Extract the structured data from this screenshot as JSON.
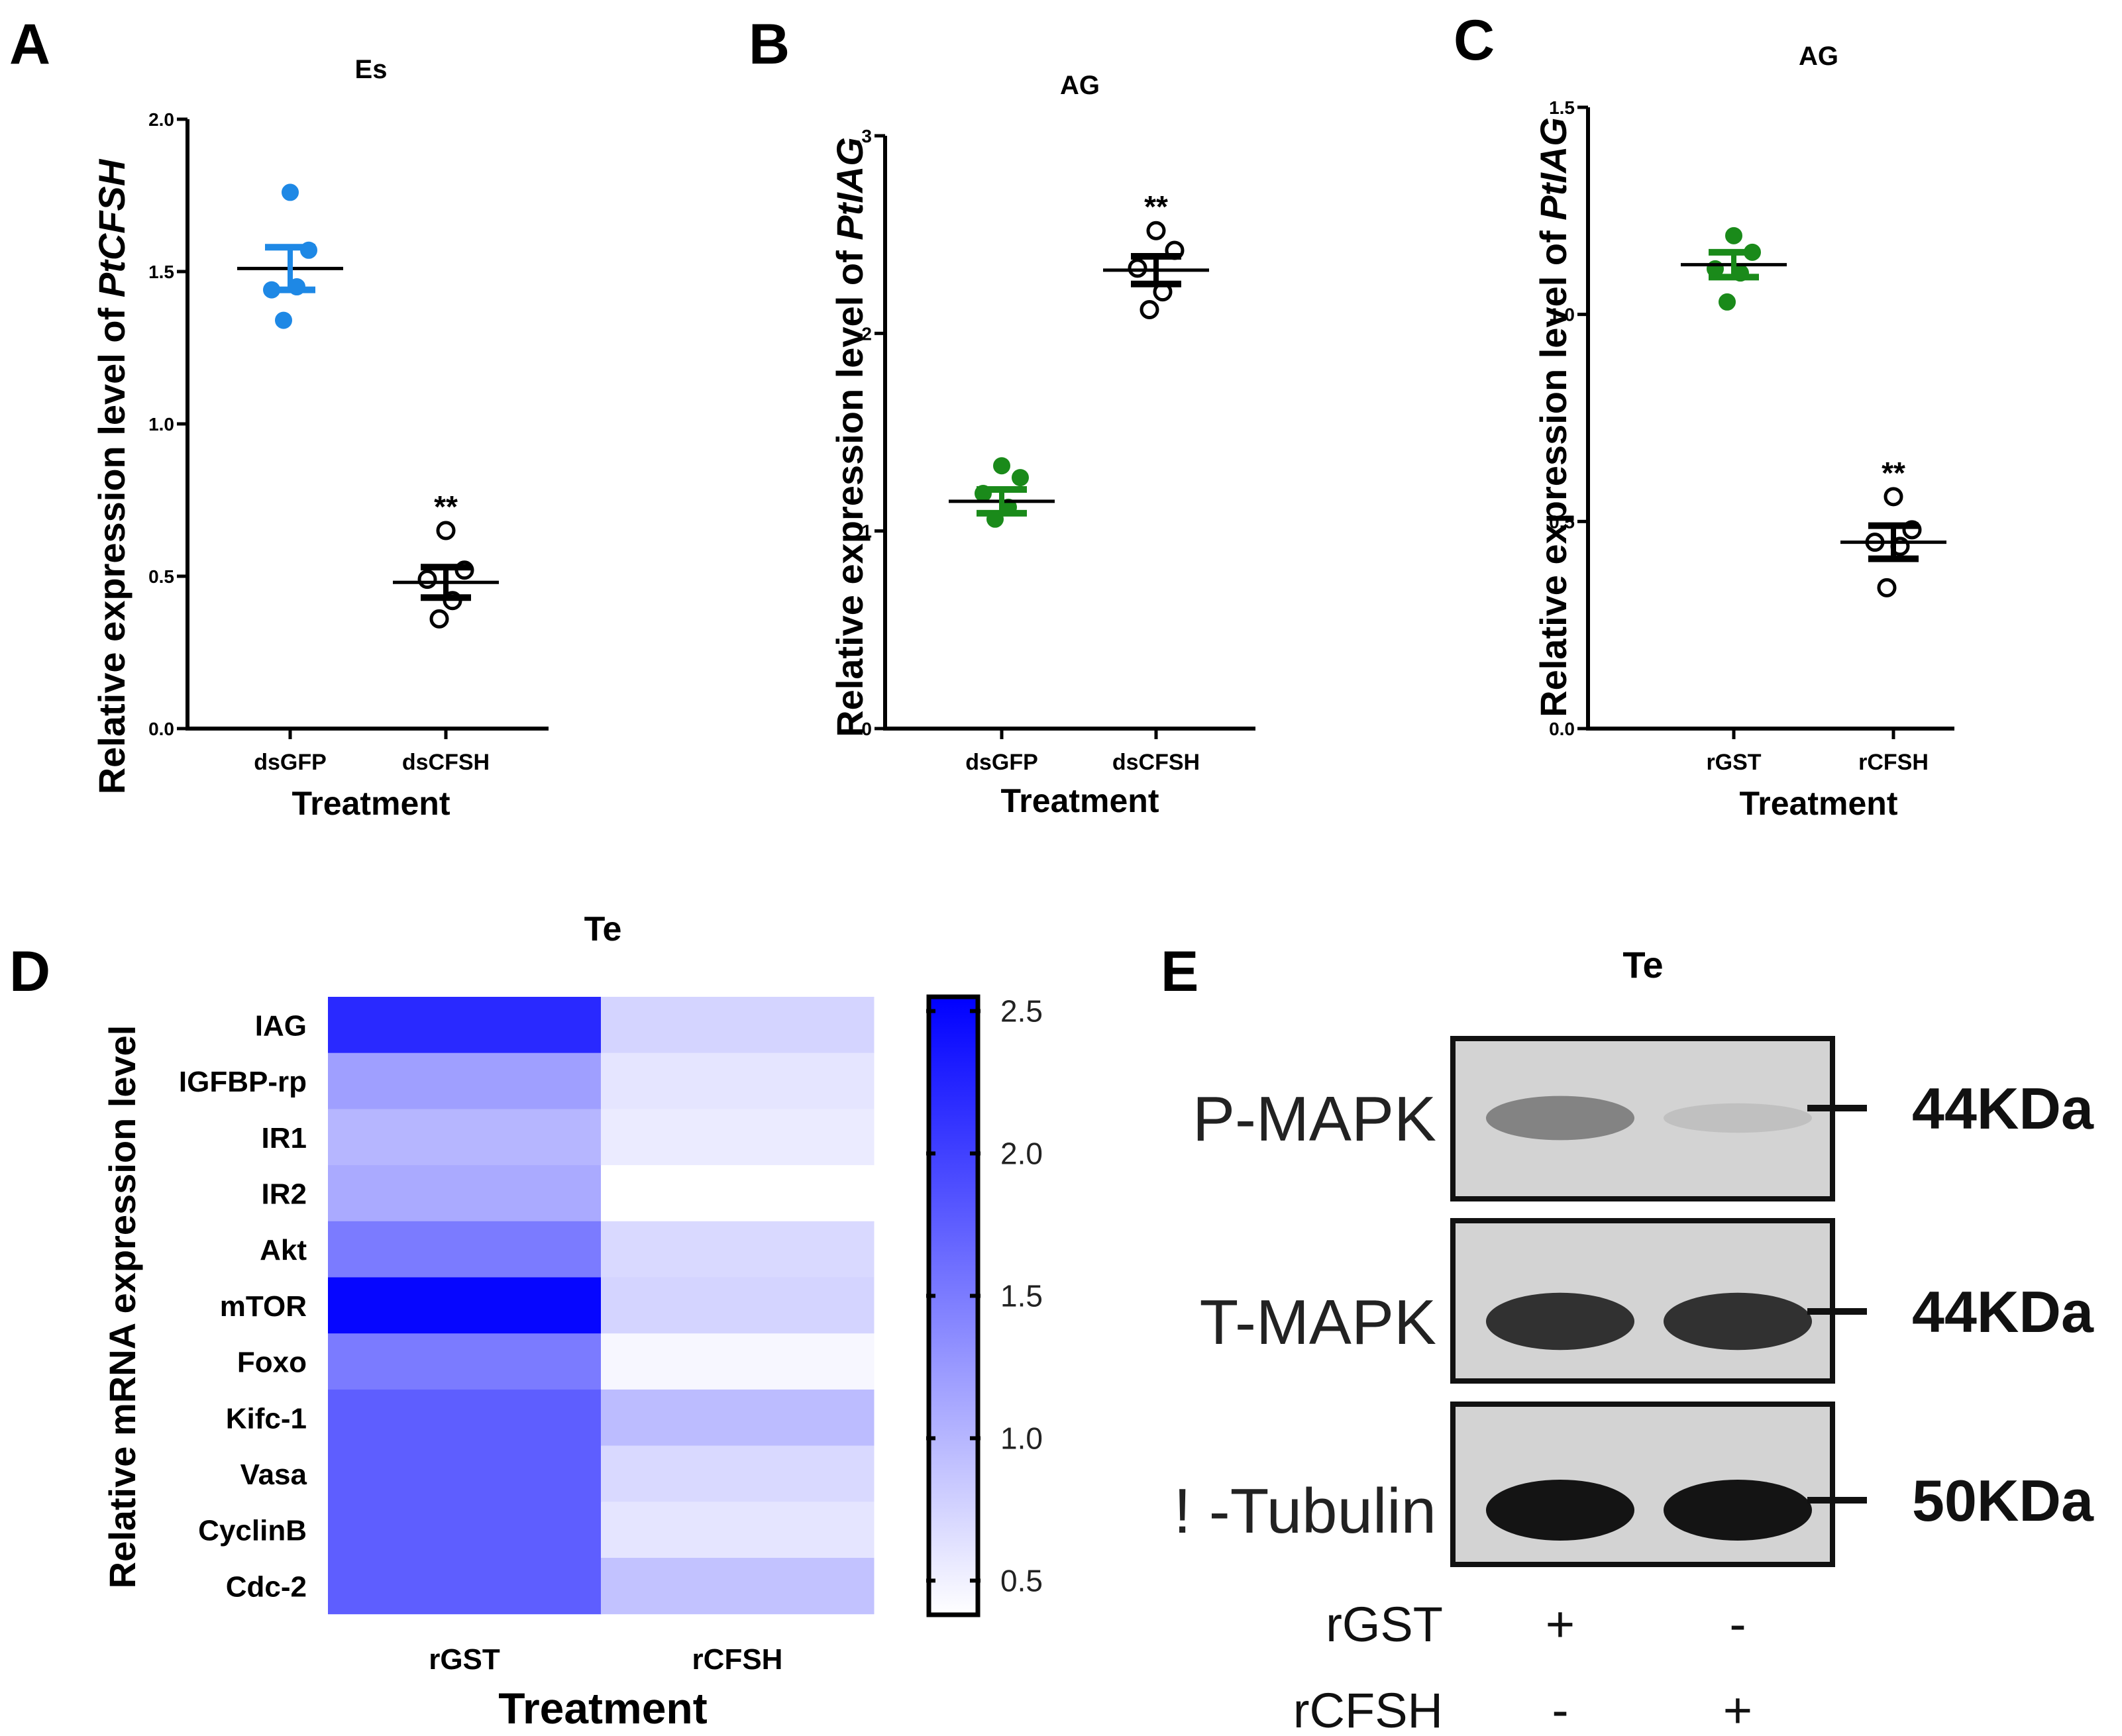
{
  "chart_data": [
    {
      "panel": "A",
      "type": "scatter",
      "title": "Es",
      "ylabel_prefix": "Relative expression level of ",
      "ylabel_gene": "PtCFSH",
      "xlabel": "Treatment",
      "categories": [
        "dsGFP",
        "dsCFSH"
      ],
      "yticks": [
        "0.0",
        "0.5",
        "1.0",
        "1.5",
        "2.0"
      ],
      "ylim": [
        0,
        2.0
      ],
      "colors": [
        "#1e88e5",
        "#000000"
      ],
      "filled": [
        true,
        false
      ],
      "significance": [
        "",
        "**"
      ],
      "series": [
        {
          "points": [
            1.76,
            1.57,
            1.44,
            1.45,
            1.34
          ],
          "mean": 1.51,
          "sem": 0.07
        },
        {
          "points": [
            0.65,
            0.52,
            0.49,
            0.42,
            0.36
          ],
          "mean": 0.48,
          "sem": 0.05
        }
      ]
    },
    {
      "panel": "B",
      "type": "scatter",
      "title": "AG",
      "ylabel_prefix": "Relative expression level of ",
      "ylabel_gene": "PtIAG",
      "xlabel": "Treatment",
      "categories": [
        "dsGFP",
        "dsCFSH"
      ],
      "yticks": [
        "0",
        "1",
        "2",
        "3"
      ],
      "ylim": [
        0,
        3
      ],
      "colors": [
        "#1a8a1a",
        "#000000"
      ],
      "filled": [
        true,
        false
      ],
      "significance": [
        "",
        "**"
      ],
      "series": [
        {
          "points": [
            1.33,
            1.27,
            1.19,
            1.12,
            1.06
          ],
          "mean": 1.15,
          "sem": 0.06
        },
        {
          "points": [
            2.52,
            2.42,
            2.33,
            2.21,
            2.12
          ],
          "mean": 2.32,
          "sem": 0.07
        }
      ]
    },
    {
      "panel": "C",
      "type": "scatter",
      "title": "AG",
      "ylabel_prefix": "Relative expression level of ",
      "ylabel_gene": "PtIAG",
      "xlabel": "Treatment",
      "categories": [
        "rGST",
        "rCFSH"
      ],
      "yticks": [
        "0.0",
        "0.5",
        "1.0",
        "1.5"
      ],
      "ylim": [
        0,
        1.5
      ],
      "colors": [
        "#1a8a1a",
        "#000000"
      ],
      "filled": [
        true,
        false
      ],
      "significance": [
        "",
        "**"
      ],
      "series": [
        {
          "points": [
            1.19,
            1.15,
            1.11,
            1.1,
            1.03
          ],
          "mean": 1.12,
          "sem": 0.03
        },
        {
          "points": [
            0.56,
            0.48,
            0.45,
            0.44,
            0.34
          ],
          "mean": 0.45,
          "sem": 0.04
        }
      ]
    },
    {
      "panel": "D",
      "type": "heatmap",
      "title": "Te",
      "ylabel": "Relative mRNA expression level",
      "xlabel": "Treatment",
      "columns": [
        "rGST",
        "rCFSH"
      ],
      "rows": [
        "IAG",
        "IGFBP-rp",
        "IR1",
        "IR2",
        "Akt",
        "mTOR",
        "Foxo",
        "Kifc-1",
        "Vasa",
        "CyclinB",
        "Cdc-2"
      ],
      "values": [
        [
          2.2,
          0.75
        ],
        [
          1.2,
          0.6
        ],
        [
          1.0,
          0.55
        ],
        [
          1.1,
          0.38
        ],
        [
          1.5,
          0.7
        ],
        [
          2.5,
          0.75
        ],
        [
          1.5,
          0.45
        ],
        [
          1.75,
          0.95
        ],
        [
          1.75,
          0.7
        ],
        [
          1.75,
          0.6
        ],
        [
          1.75,
          0.9
        ]
      ],
      "colorbar_ticks": [
        "0.5",
        "1.0",
        "1.5",
        "2.0",
        "2.5"
      ],
      "colorbar_range": [
        0.38,
        2.55
      ],
      "color_low": "#ffffff",
      "color_high": "#0000ff"
    }
  ],
  "western_blot": {
    "panel": "E",
    "title": "Te",
    "bands": [
      {
        "label": "P-MAPK",
        "size": "44KDa",
        "intensity": [
          0.55,
          0.15
        ]
      },
      {
        "label": "T-MAPK",
        "size": "44KDa",
        "intensity": [
          0.9,
          0.9
        ]
      },
      {
        "label": "! -Tubulin",
        "size": "50KDa",
        "intensity": [
          1.0,
          1.0
        ]
      }
    ],
    "conditions": [
      {
        "label": "rGST",
        "signs": [
          "+",
          "-"
        ]
      },
      {
        "label": "rCFSH",
        "signs": [
          "-",
          "+"
        ]
      }
    ]
  }
}
